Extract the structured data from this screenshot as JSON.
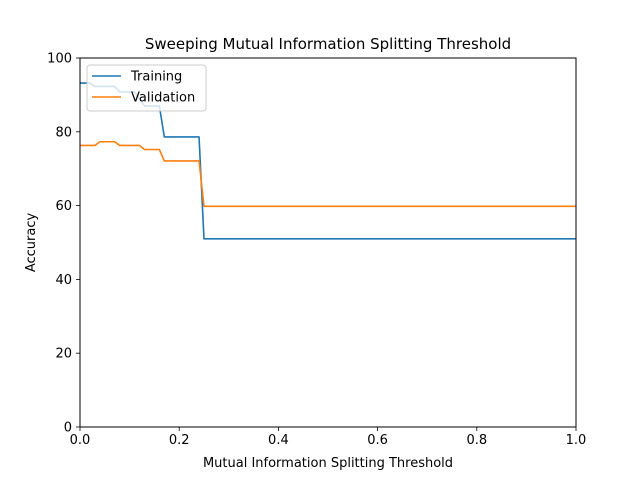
{
  "chart_data": {
    "type": "line",
    "title": "Sweeping Mutual Information Splitting Threshold",
    "xlabel": "Mutual Information Splitting Threshold",
    "ylabel": "Accuracy",
    "xlim": [
      0.0,
      1.0
    ],
    "ylim": [
      0,
      100
    ],
    "xticks": [
      "0.0",
      "0.2",
      "0.4",
      "0.6",
      "0.8",
      "1.0"
    ],
    "yticks": [
      "0",
      "20",
      "40",
      "60",
      "80",
      "100"
    ],
    "grid": false,
    "legend_position": "top-left",
    "series": [
      {
        "name": "Training",
        "color": "#1f77b4",
        "points": [
          [
            0.0,
            93.2
          ],
          [
            0.02,
            93.2
          ],
          [
            0.03,
            92.3
          ],
          [
            0.07,
            92.3
          ],
          [
            0.08,
            90.8
          ],
          [
            0.11,
            90.8
          ],
          [
            0.13,
            87.0
          ],
          [
            0.16,
            87.0
          ],
          [
            0.17,
            78.6
          ],
          [
            0.24,
            78.6
          ],
          [
            0.25,
            51.0
          ],
          [
            1.0,
            51.0
          ]
        ]
      },
      {
        "name": "Validation",
        "color": "#ff7f0e",
        "points": [
          [
            0.0,
            76.3
          ],
          [
            0.03,
            76.3
          ],
          [
            0.04,
            77.3
          ],
          [
            0.07,
            77.3
          ],
          [
            0.08,
            76.3
          ],
          [
            0.12,
            76.3
          ],
          [
            0.13,
            75.2
          ],
          [
            0.16,
            75.2
          ],
          [
            0.17,
            72.1
          ],
          [
            0.24,
            72.1
          ],
          [
            0.25,
            59.8
          ],
          [
            1.0,
            59.8
          ]
        ]
      }
    ]
  }
}
